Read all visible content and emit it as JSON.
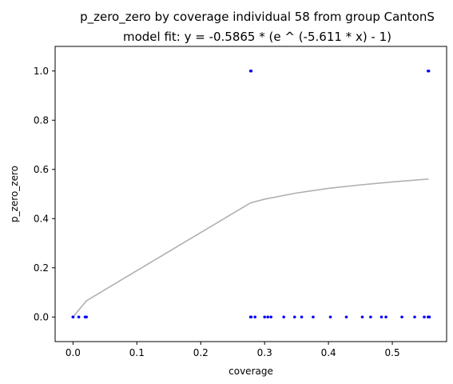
{
  "chart_data": {
    "type": "scatter",
    "title": "p_zero_zero by coverage individual 58 from group CantonS",
    "subtitle": "model fit: y = -0.5865 * (e ^ (-5.611 * x) - 1)",
    "xlabel": "coverage",
    "ylabel": "p_zero_zero",
    "xlim": [
      -0.028,
      0.585
    ],
    "ylim": [
      -0.1,
      1.1
    ],
    "xticks": [
      "0.0",
      "0.1",
      "0.2",
      "0.3",
      "0.4",
      "0.5"
    ],
    "yticks": [
      "0.0",
      "0.2",
      "0.4",
      "0.6",
      "0.8",
      "1.0"
    ],
    "grid": false,
    "points_color": "#0000ff",
    "fit_color": "#b0b0b0",
    "points": {
      "x": [
        0.0,
        0.0,
        0.009,
        0.019,
        0.021,
        0.278,
        0.279,
        0.285,
        0.3,
        0.305,
        0.31,
        0.33,
        0.347,
        0.358,
        0.376,
        0.403,
        0.428,
        0.453,
        0.466,
        0.483,
        0.49,
        0.515,
        0.535,
        0.55,
        0.556,
        0.557,
        0.558,
        0.278,
        0.279,
        0.556,
        0.557
      ],
      "y": [
        0,
        0,
        0,
        0,
        0,
        0,
        0,
        0,
        0,
        0,
        0,
        0,
        0,
        0,
        0,
        0,
        0,
        0,
        0,
        0,
        0,
        0,
        0,
        0,
        0,
        0,
        0,
        1,
        1,
        1,
        1
      ]
    },
    "fit_line": {
      "x": [
        0.0,
        0.021,
        0.278,
        0.3,
        0.35,
        0.4,
        0.45,
        0.5,
        0.557
      ],
      "y": [
        0.0,
        0.066,
        0.464,
        0.479,
        0.504,
        0.523,
        0.537,
        0.549,
        0.561
      ]
    }
  }
}
